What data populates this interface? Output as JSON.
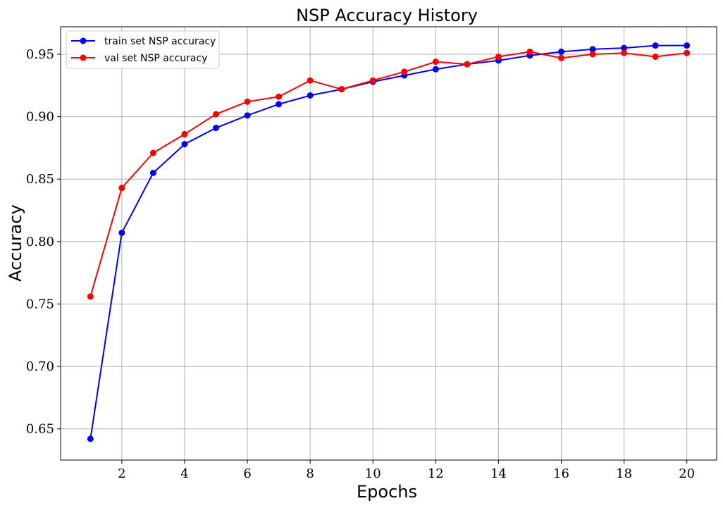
{
  "chart_data": {
    "type": "line",
    "title": "NSP Accuracy History",
    "xlabel": "Epochs",
    "ylabel": "Accuracy",
    "x": [
      1,
      2,
      3,
      4,
      5,
      6,
      7,
      8,
      9,
      10,
      11,
      12,
      13,
      14,
      15,
      16,
      17,
      18,
      19,
      20
    ],
    "xlim": [
      0.05,
      20.95
    ],
    "ylim": [
      0.625,
      0.972
    ],
    "x_ticks": [
      2,
      4,
      6,
      8,
      10,
      12,
      14,
      16,
      18,
      20
    ],
    "y_ticks": [
      0.65,
      0.7,
      0.75,
      0.8,
      0.85,
      0.9,
      0.95
    ],
    "x_tick_labels": [
      "2",
      "4",
      "6",
      "8",
      "10",
      "12",
      "14",
      "16",
      "18",
      "20"
    ],
    "y_tick_labels": [
      "0.65",
      "0.70",
      "0.75",
      "0.80",
      "0.85",
      "0.90",
      "0.95"
    ],
    "grid": true,
    "legend_position": "top-left",
    "series": [
      {
        "name": "train set NSP accuracy",
        "color": "#0000ff",
        "marker": "circle",
        "values": [
          0.642,
          0.807,
          0.855,
          0.878,
          0.891,
          0.901,
          0.91,
          0.917,
          0.922,
          0.928,
          0.933,
          0.938,
          0.942,
          0.945,
          0.949,
          0.952,
          0.954,
          0.955,
          0.957,
          0.957
        ]
      },
      {
        "name": "val set NSP accuracy",
        "color": "#ff0000",
        "marker": "circle",
        "values": [
          0.756,
          0.843,
          0.871,
          0.886,
          0.902,
          0.912,
          0.916,
          0.929,
          0.922,
          0.929,
          0.936,
          0.944,
          0.942,
          0.948,
          0.952,
          0.947,
          0.95,
          0.951,
          0.948,
          0.951
        ]
      }
    ]
  }
}
